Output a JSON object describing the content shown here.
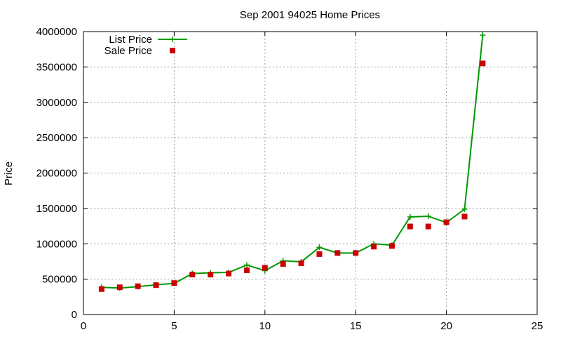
{
  "chart_data": {
    "type": "line",
    "title": "Sep 2001 94025 Home Prices",
    "xlabel": "",
    "ylabel": "Price",
    "xlim": [
      0,
      25
    ],
    "ylim": [
      0,
      4000000
    ],
    "xticks": [
      0,
      5,
      10,
      15,
      20,
      25
    ],
    "yticks": [
      0,
      500000,
      1000000,
      1500000,
      2000000,
      2500000,
      3000000,
      3500000,
      4000000
    ],
    "grid": true,
    "legend_position": "top-left",
    "series": [
      {
        "name": "List Price",
        "style": "line-plus",
        "color": "#009900",
        "x": [
          1,
          2,
          3,
          4,
          5,
          6,
          7,
          8,
          9,
          10,
          11,
          12,
          13,
          14,
          15,
          16,
          17,
          18,
          19,
          20,
          21,
          22
        ],
        "y": [
          385000,
          375000,
          395000,
          420000,
          440000,
          580000,
          590000,
          595000,
          700000,
          620000,
          760000,
          745000,
          950000,
          870000,
          870000,
          1000000,
          980000,
          1380000,
          1390000,
          1300000,
          1490000,
          3950000
        ]
      },
      {
        "name": "Sale Price",
        "style": "square",
        "color": "#cc0000",
        "x": [
          1,
          2,
          3,
          4,
          5,
          6,
          7,
          8,
          9,
          10,
          11,
          12,
          13,
          14,
          15,
          16,
          17,
          18,
          19,
          20,
          21,
          22
        ],
        "y": [
          360000,
          385000,
          400000,
          415000,
          445000,
          565000,
          565000,
          580000,
          625000,
          660000,
          715000,
          725000,
          855000,
          870000,
          870000,
          960000,
          970000,
          1245000,
          1245000,
          1305000,
          1385000,
          3550000
        ]
      }
    ]
  }
}
